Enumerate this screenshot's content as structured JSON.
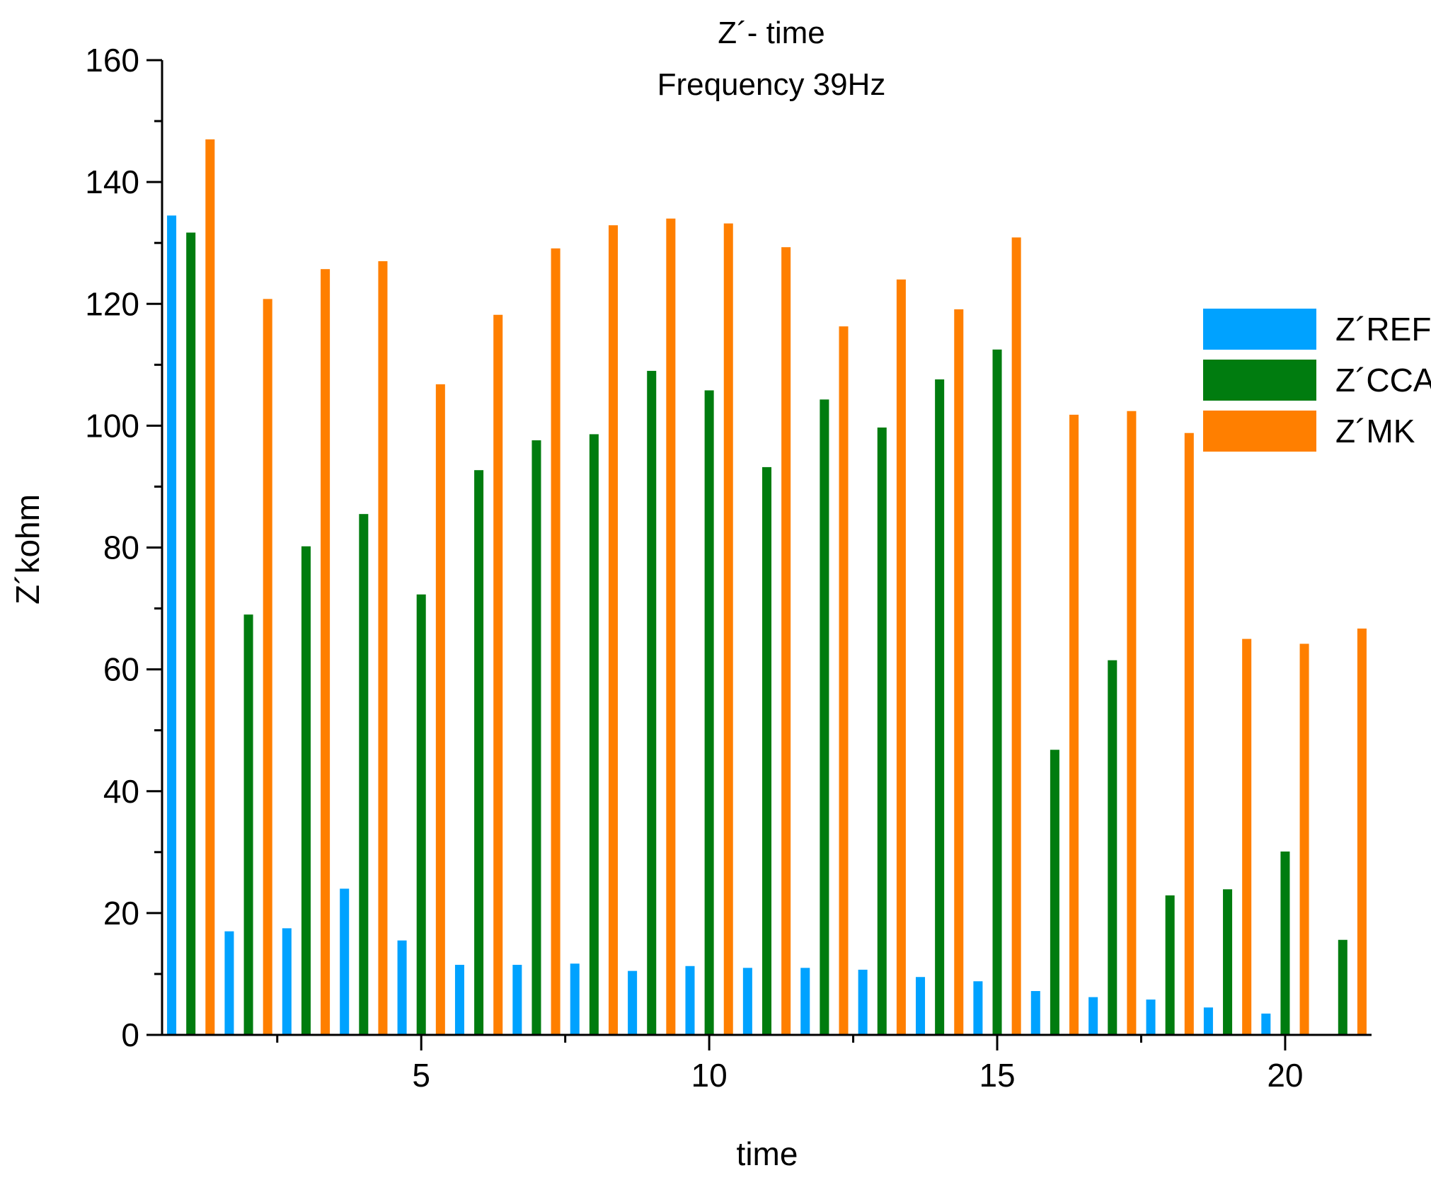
{
  "chart_data": {
    "type": "bar",
    "title": "Z´- time",
    "subtitle": "Frequency 39Hz",
    "xlabel": "time",
    "ylabel": "Z´kohm",
    "categories": [
      1,
      2,
      3,
      4,
      5,
      6,
      7,
      8,
      9,
      10,
      11,
      12,
      13,
      14,
      15,
      16,
      17,
      18,
      19,
      20,
      21
    ],
    "x_ticks": [
      5,
      10,
      15,
      20
    ],
    "x_range": [
      0.5,
      21.5
    ],
    "ylim": [
      0,
      160
    ],
    "y_ticks": [
      0,
      20,
      40,
      60,
      80,
      100,
      120,
      140,
      160
    ],
    "grid": false,
    "legend_position": "right",
    "series": [
      {
        "name": "Z´REF",
        "color": "#00a2ff",
        "values": [
          134.5,
          17,
          17.5,
          24,
          15.5,
          11.5,
          11.5,
          11.7,
          10.5,
          11.3,
          11,
          11,
          10.7,
          9.5,
          8.8,
          7.2,
          6.2,
          5.8,
          4.5,
          3.5,
          null
        ]
      },
      {
        "name": "Z´CCA",
        "color": "#007c0f",
        "values": [
          131.7,
          69,
          80.2,
          85.5,
          72.3,
          92.7,
          97.6,
          98.6,
          109,
          105.8,
          93.2,
          104.3,
          99.7,
          107.6,
          112.5,
          46.8,
          61.5,
          22.9,
          23.9,
          30.1,
          15.6
        ]
      },
      {
        "name": "Z´MK",
        "color": "#ff7f00",
        "values": [
          147,
          120.8,
          125.7,
          127,
          106.8,
          118.2,
          129.1,
          132.9,
          134,
          133.2,
          129.3,
          116.3,
          124,
          119.1,
          130.9,
          101.8,
          102.4,
          98.8,
          65,
          64.2,
          66.7
        ]
      }
    ]
  }
}
